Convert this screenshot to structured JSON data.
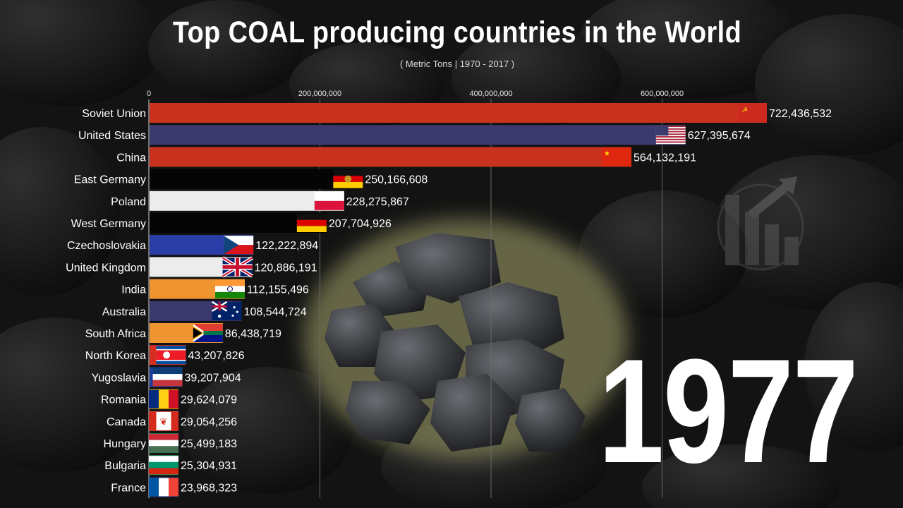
{
  "title": "Top COAL producing countries in the World",
  "subtitle": "( Metric Tons | 1970 - 2017 )",
  "year": "1977",
  "chart_data": {
    "type": "bar",
    "orientation": "horizontal",
    "title": "Top COAL producing countries in the World",
    "subtitle": "( Metric Tons | 1970 - 2017 )",
    "xlim": [
      0,
      722436532
    ],
    "x_ticks": [
      0,
      200000000,
      400000000,
      600000000
    ],
    "x_tick_labels": [
      "0",
      "200,000,000",
      "400,000,000",
      "600,000,000"
    ],
    "grid": true,
    "categories": [
      "Soviet Union",
      "United States",
      "China",
      "East Germany",
      "Poland",
      "West Germany",
      "Czechoslovakia",
      "United Kingdom",
      "India",
      "Australia",
      "South Africa",
      "North Korea",
      "Yugoslavia",
      "Romania",
      "Canada",
      "Hungary",
      "Bulgaria",
      "France"
    ],
    "values": [
      722436532,
      627395674,
      564132191,
      250166608,
      228275867,
      207704926,
      122222894,
      120886191,
      112155496,
      108544724,
      86438719,
      43207826,
      39207904,
      29624079,
      29054256,
      25499183,
      25304931,
      23968323
    ],
    "value_labels": [
      "722,436,532",
      "627,395,674",
      "564,132,191",
      "250,166,608",
      "228,275,867",
      "207,704,926",
      "122,222,894",
      "120,886,191",
      "112,155,496",
      "108,544,724",
      "86,438,719",
      "43,207,826",
      "39,207,904",
      "29,624,079",
      "29,054,256",
      "25,499,183",
      "25,304,931",
      "23,968,323"
    ],
    "bar_colors": [
      "#c8321e",
      "#3a3a6e",
      "#c8321e",
      "#050505",
      "#ececec",
      "#050505",
      "#2b3ea8",
      "#ececec",
      "#ee9430",
      "#3a3a6e",
      "#ee9430",
      "#d5301f",
      "#1d3b9e",
      "#e6b800",
      "#d5301f",
      "#2f7a4a",
      "#2f8f5a",
      "#24337f"
    ],
    "flags": [
      "soviet-union-flag",
      "united-states-flag",
      "china-flag",
      "east-germany-flag",
      "poland-flag",
      "west-germany-flag",
      "czechoslovakia-flag",
      "united-kingdom-flag",
      "india-flag",
      "australia-flag",
      "south-africa-flag",
      "north-korea-flag",
      "yugoslavia-flag",
      "romania-flag",
      "canada-flag",
      "hungary-flag",
      "bulgaria-flag",
      "france-flag"
    ]
  },
  "decor": {
    "coal-image": "coal-pile-image",
    "logo": "bbgm-logo"
  }
}
